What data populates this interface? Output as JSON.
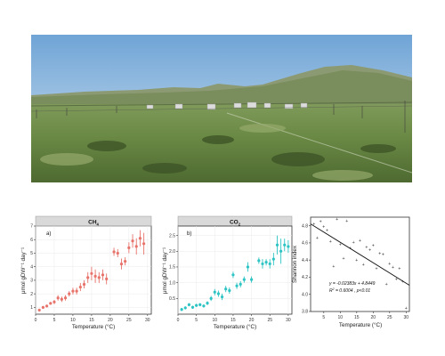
{
  "chart_data": [
    {
      "type": "scatter",
      "panel_label": "a)",
      "strip_title": "CH",
      "strip_sub": "4",
      "ylabel": "μmol gDW⁻¹ day⁻¹",
      "xlabel": "Temperature (°C)",
      "xlim": [
        0,
        31
      ],
      "ylim": [
        0.5,
        7
      ],
      "xticks": [
        "0",
        "5",
        "10",
        "15",
        "20",
        "25",
        "30"
      ],
      "yticks": [
        "1",
        "2",
        "3",
        "4",
        "5",
        "6",
        "7"
      ],
      "color": "#e8736b",
      "grid": true,
      "points": [
        {
          "x": 1,
          "y": 0.8,
          "err": 0.1
        },
        {
          "x": 2,
          "y": 1.0,
          "err": 0.1
        },
        {
          "x": 3,
          "y": 1.1,
          "err": 0.1
        },
        {
          "x": 4,
          "y": 1.3,
          "err": 0.1
        },
        {
          "x": 5,
          "y": 1.4,
          "err": 0.15
        },
        {
          "x": 6,
          "y": 1.7,
          "err": 0.2
        },
        {
          "x": 7,
          "y": 1.6,
          "err": 0.2
        },
        {
          "x": 8,
          "y": 1.7,
          "err": 0.2
        },
        {
          "x": 9,
          "y": 2.0,
          "err": 0.2
        },
        {
          "x": 10,
          "y": 2.2,
          "err": 0.25
        },
        {
          "x": 11,
          "y": 2.2,
          "err": 0.25
        },
        {
          "x": 12,
          "y": 2.5,
          "err": 0.3
        },
        {
          "x": 13,
          "y": 2.7,
          "err": 0.3
        },
        {
          "x": 14,
          "y": 3.2,
          "err": 0.4
        },
        {
          "x": 15,
          "y": 3.5,
          "err": 0.5
        },
        {
          "x": 16,
          "y": 3.3,
          "err": 0.5
        },
        {
          "x": 17,
          "y": 3.2,
          "err": 0.4
        },
        {
          "x": 18,
          "y": 3.4,
          "err": 0.4
        },
        {
          "x": 19,
          "y": 3.1,
          "err": 0.4
        },
        {
          "x": 21,
          "y": 5.1,
          "err": 0.3
        },
        {
          "x": 22,
          "y": 5.0,
          "err": 0.3
        },
        {
          "x": 23,
          "y": 4.2,
          "err": 0.4
        },
        {
          "x": 24,
          "y": 4.4,
          "err": 0.3
        },
        {
          "x": 25,
          "y": 5.4,
          "err": 0.4
        },
        {
          "x": 26,
          "y": 5.9,
          "err": 0.5
        },
        {
          "x": 27,
          "y": 5.5,
          "err": 0.6
        },
        {
          "x": 28,
          "y": 6.1,
          "err": 0.6
        },
        {
          "x": 29,
          "y": 5.7,
          "err": 0.8
        }
      ]
    },
    {
      "type": "scatter",
      "panel_label": "b)",
      "strip_title": "CO",
      "strip_sub": "2",
      "ylabel": "μmol gDW⁻¹ day⁻¹",
      "xlabel": "Temperature (°C)",
      "xlim": [
        0,
        31
      ],
      "ylim": [
        0,
        2.8
      ],
      "xticks": [
        "0",
        "5",
        "10",
        "15",
        "20",
        "25",
        "30"
      ],
      "yticks": [
        "0.5",
        "1.0",
        "1.5",
        "2.0",
        "2.5"
      ],
      "color": "#2ec4c4",
      "grid": true,
      "points": [
        {
          "x": 1,
          "y": 0.15,
          "err": 0.05
        },
        {
          "x": 2,
          "y": 0.2,
          "err": 0.05
        },
        {
          "x": 3,
          "y": 0.3,
          "err": 0.05
        },
        {
          "x": 4,
          "y": 0.22,
          "err": 0.05
        },
        {
          "x": 5,
          "y": 0.28,
          "err": 0.05
        },
        {
          "x": 6,
          "y": 0.3,
          "err": 0.05
        },
        {
          "x": 7,
          "y": 0.26,
          "err": 0.05
        },
        {
          "x": 8,
          "y": 0.35,
          "err": 0.06
        },
        {
          "x": 9,
          "y": 0.5,
          "err": 0.08
        },
        {
          "x": 10,
          "y": 0.7,
          "err": 0.1
        },
        {
          "x": 11,
          "y": 0.65,
          "err": 0.1
        },
        {
          "x": 12,
          "y": 0.55,
          "err": 0.1
        },
        {
          "x": 13,
          "y": 0.8,
          "err": 0.1
        },
        {
          "x": 14,
          "y": 0.75,
          "err": 0.1
        },
        {
          "x": 15,
          "y": 1.25,
          "err": 0.1
        },
        {
          "x": 16,
          "y": 0.9,
          "err": 0.1
        },
        {
          "x": 17,
          "y": 0.95,
          "err": 0.1
        },
        {
          "x": 18,
          "y": 1.1,
          "err": 0.1
        },
        {
          "x": 19,
          "y": 1.5,
          "err": 0.15
        },
        {
          "x": 20,
          "y": 1.1,
          "err": 0.1
        },
        {
          "x": 22,
          "y": 1.7,
          "err": 0.1
        },
        {
          "x": 23,
          "y": 1.6,
          "err": 0.15
        },
        {
          "x": 24,
          "y": 1.65,
          "err": 0.1
        },
        {
          "x": 25,
          "y": 1.6,
          "err": 0.15
        },
        {
          "x": 26,
          "y": 1.75,
          "err": 0.2
        },
        {
          "x": 27,
          "y": 2.2,
          "err": 0.3
        },
        {
          "x": 28,
          "y": 2.0,
          "err": 0.4
        },
        {
          "x": 29,
          "y": 2.2,
          "err": 0.2
        },
        {
          "x": 30,
          "y": 2.15,
          "err": 0.2
        }
      ]
    },
    {
      "type": "scatter",
      "ylabel": "Shannon index",
      "xlabel": "Temperature (°C)",
      "xlim": [
        1,
        31
      ],
      "ylim": [
        3.8,
        4.9
      ],
      "xticks": [
        "5",
        "10",
        "15",
        "20",
        "25",
        "30"
      ],
      "yticks": [
        "3.8",
        "4.0",
        "4.2",
        "4.4",
        "4.6",
        "4.8"
      ],
      "equation": "y = -0.02383x + 4.8449",
      "r2_prefix": "R",
      "r2_sup": "2",
      "r2_text": " = 0.6004 , p<0.01",
      "fit": {
        "slope": -0.02383,
        "intercept": 4.8449
      },
      "grid": false,
      "points": [
        {
          "x": 2,
          "y": 4.82
        },
        {
          "x": 3,
          "y": 4.66
        },
        {
          "x": 4,
          "y": 4.85
        },
        {
          "x": 5,
          "y": 4.79
        },
        {
          "x": 6,
          "y": 4.75
        },
        {
          "x": 7,
          "y": 4.62
        },
        {
          "x": 8,
          "y": 4.33
        },
        {
          "x": 9,
          "y": 4.88
        },
        {
          "x": 10,
          "y": 4.58
        },
        {
          "x": 11,
          "y": 4.42
        },
        {
          "x": 12,
          "y": 4.86
        },
        {
          "x": 13,
          "y": 4.54
        },
        {
          "x": 14,
          "y": 4.61
        },
        {
          "x": 15,
          "y": 4.4
        },
        {
          "x": 16,
          "y": 4.63
        },
        {
          "x": 17,
          "y": 4.35
        },
        {
          "x": 18,
          "y": 4.55
        },
        {
          "x": 19,
          "y": 4.52
        },
        {
          "x": 20,
          "y": 4.57
        },
        {
          "x": 21,
          "y": 4.3
        },
        {
          "x": 22,
          "y": 4.48
        },
        {
          "x": 23,
          "y": 4.47
        },
        {
          "x": 24,
          "y": 4.12
        },
        {
          "x": 25,
          "y": 4.36
        },
        {
          "x": 26,
          "y": 4.32
        },
        {
          "x": 27,
          "y": 4.18
        },
        {
          "x": 28,
          "y": 4.3
        },
        {
          "x": 29,
          "y": 4.15
        },
        {
          "x": 30,
          "y": 3.84
        }
      ]
    }
  ]
}
